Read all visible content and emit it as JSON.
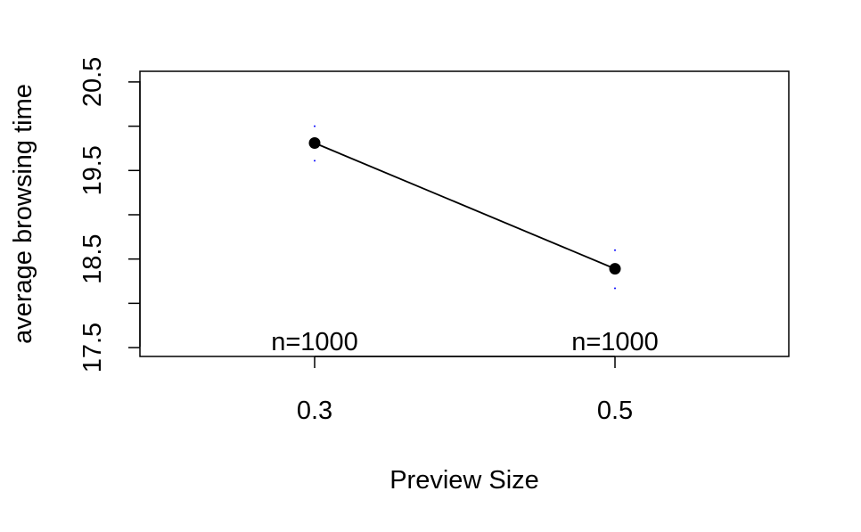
{
  "chart_data": {
    "type": "line",
    "title": "",
    "xlabel": "Preview Size",
    "ylabel": "average  browsing time",
    "categories": [
      "0.3",
      "0.5"
    ],
    "series": [
      {
        "values": [
          19.81,
          18.39
        ],
        "ci_lower": [
          19.61,
          18.17
        ],
        "ci_upper": [
          20.0,
          18.6
        ],
        "n_labels": [
          "n=1000",
          "n=1000"
        ]
      }
    ],
    "ylim": [
      17.4,
      20.62
    ],
    "y_tick_labels": [
      "17.5",
      "18.5",
      "19.5",
      "20.5"
    ],
    "y_tick_values": [
      17.5,
      18.0,
      18.5,
      19.0,
      19.5,
      20.0,
      20.5
    ],
    "grid": false,
    "legend": "none",
    "colors": {
      "line": "#000000",
      "point": "#000000",
      "ci": "#0000ff",
      "frame": "#000000"
    }
  }
}
